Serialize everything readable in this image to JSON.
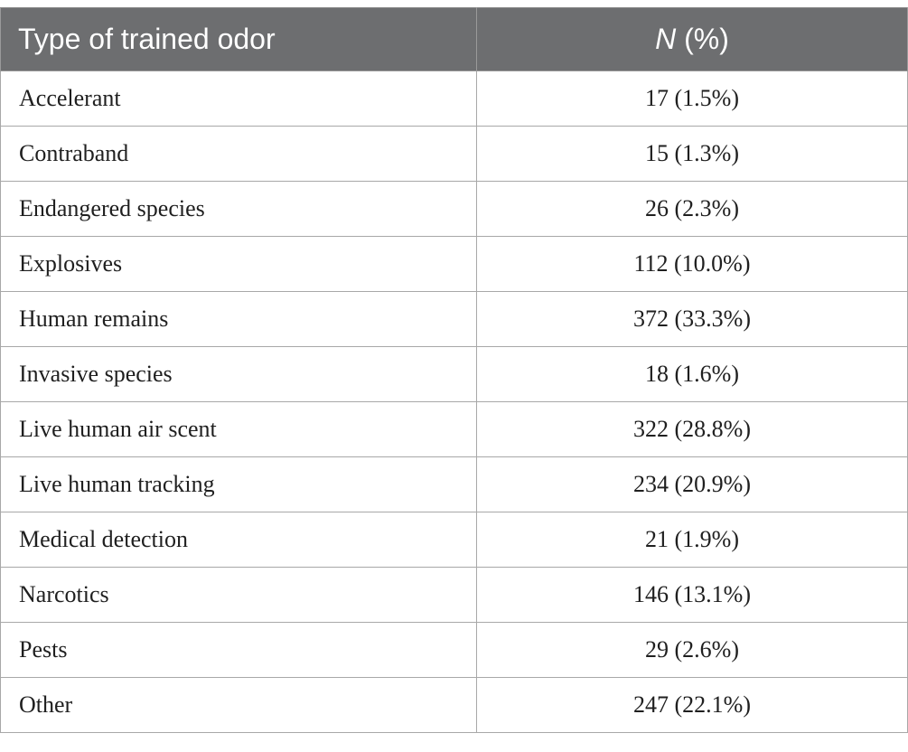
{
  "header": {
    "col1": "Type of trained odor",
    "col2_italic": "N",
    "col2_rest": " (%)"
  },
  "rows": [
    {
      "label": "Accelerant",
      "value": "17 (1.5%)"
    },
    {
      "label": "Contraband",
      "value": "15 (1.3%)"
    },
    {
      "label": "Endangered species",
      "value": "26 (2.3%)"
    },
    {
      "label": "Explosives",
      "value": "112 (10.0%)"
    },
    {
      "label": "Human remains",
      "value": "372 (33.3%)"
    },
    {
      "label": "Invasive species",
      "value": "18 (1.6%)"
    },
    {
      "label": "Live human air scent",
      "value": "322 (28.8%)"
    },
    {
      "label": "Live human tracking",
      "value": "234 (20.9%)"
    },
    {
      "label": "Medical detection",
      "value": "21 (1.9%)"
    },
    {
      "label": "Narcotics",
      "value": "146 (13.1%)"
    },
    {
      "label": "Pests",
      "value": "29 (2.6%)"
    },
    {
      "label": "Other",
      "value": "247 (22.1%)"
    }
  ],
  "colors": {
    "header_bg": "#6d6e70",
    "header_text": "#ffffff",
    "border": "#a8a8a8"
  }
}
